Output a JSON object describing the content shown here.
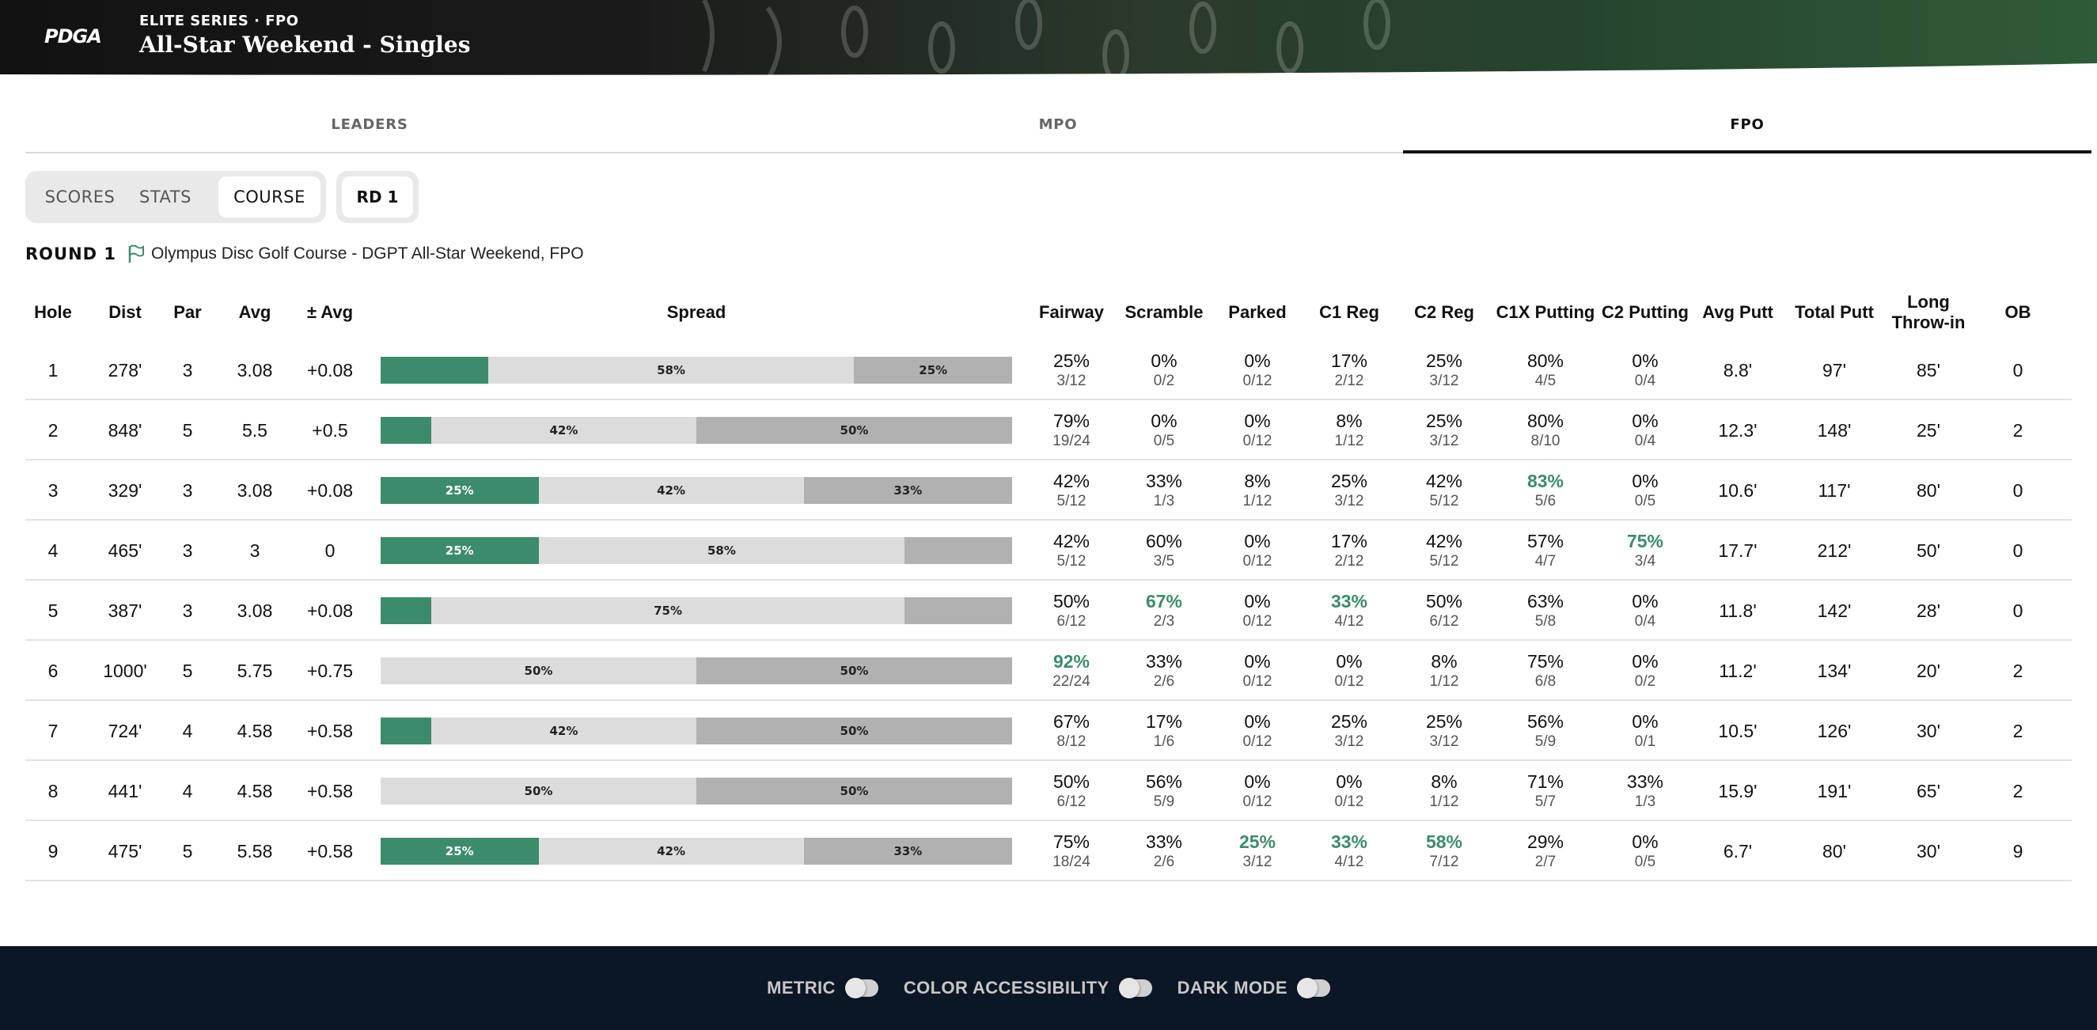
{
  "header": {
    "logo_text": "PDGA",
    "series": "ELITE SERIES · FPO",
    "event_title": "All-Star Weekend - Singles"
  },
  "division_tabs": [
    {
      "label": "LEADERS",
      "active": false
    },
    {
      "label": "MPO",
      "active": false
    },
    {
      "label": "FPO",
      "active": true
    }
  ],
  "view_tabs": [
    {
      "label": "SCORES",
      "active": false
    },
    {
      "label": "STATS",
      "active": false
    },
    {
      "label": "COURSE",
      "active": true
    }
  ],
  "round_selector": "RD 1",
  "round": {
    "label": "ROUND 1",
    "course": "Olympus Disc Golf Course - DGPT All-Star Weekend, FPO"
  },
  "colors": {
    "accent_green": "#3c8c6b",
    "spread_light": "#dcdcdc",
    "spread_dark": "#b1b1b1",
    "footer_bg": "#0c1726"
  },
  "table": {
    "columns": [
      "Hole",
      "Dist",
      "Par",
      "Avg",
      "± Avg",
      "Spread",
      "Fairway",
      "Scramble",
      "Parked",
      "C1 Reg",
      "C2 Reg",
      "C1X Putting",
      "C2 Putting",
      "Avg Putt",
      "Total Putt",
      "Long Throw-in",
      "OB"
    ],
    "rows": [
      {
        "hole": "1",
        "dist": "278'",
        "par": "3",
        "avg": "3.08",
        "pm": "+0.08",
        "spread": [
          {
            "pct": 17,
            "label": ""
          },
          {
            "pct": 58,
            "label": "58%"
          },
          {
            "pct": 25,
            "label": "25%"
          }
        ],
        "fairway": {
          "pct": "25%",
          "frac": "3/12",
          "hi": false
        },
        "scramble": {
          "pct": "0%",
          "frac": "0/2",
          "hi": false
        },
        "parked": {
          "pct": "0%",
          "frac": "0/12",
          "hi": false
        },
        "c1reg": {
          "pct": "17%",
          "frac": "2/12",
          "hi": false
        },
        "c2reg": {
          "pct": "25%",
          "frac": "3/12",
          "hi": false
        },
        "c1x": {
          "pct": "80%",
          "frac": "4/5",
          "hi": false
        },
        "c2putt": {
          "pct": "0%",
          "frac": "0/4",
          "hi": false
        },
        "avgputt": "8.8'",
        "totalputt": "97'",
        "longthrow": "85'",
        "ob": "0"
      },
      {
        "hole": "2",
        "dist": "848'",
        "par": "5",
        "avg": "5.5",
        "pm": "+0.5",
        "spread": [
          {
            "pct": 8,
            "label": ""
          },
          {
            "pct": 42,
            "label": "42%"
          },
          {
            "pct": 50,
            "label": "50%"
          }
        ],
        "fairway": {
          "pct": "79%",
          "frac": "19/24",
          "hi": false
        },
        "scramble": {
          "pct": "0%",
          "frac": "0/5",
          "hi": false
        },
        "parked": {
          "pct": "0%",
          "frac": "0/12",
          "hi": false
        },
        "c1reg": {
          "pct": "8%",
          "frac": "1/12",
          "hi": false
        },
        "c2reg": {
          "pct": "25%",
          "frac": "3/12",
          "hi": false
        },
        "c1x": {
          "pct": "80%",
          "frac": "8/10",
          "hi": false
        },
        "c2putt": {
          "pct": "0%",
          "frac": "0/4",
          "hi": false
        },
        "avgputt": "12.3'",
        "totalputt": "148'",
        "longthrow": "25'",
        "ob": "2"
      },
      {
        "hole": "3",
        "dist": "329'",
        "par": "3",
        "avg": "3.08",
        "pm": "+0.08",
        "spread": [
          {
            "pct": 25,
            "label": "25%"
          },
          {
            "pct": 42,
            "label": "42%"
          },
          {
            "pct": 33,
            "label": "33%"
          }
        ],
        "fairway": {
          "pct": "42%",
          "frac": "5/12",
          "hi": false
        },
        "scramble": {
          "pct": "33%",
          "frac": "1/3",
          "hi": false
        },
        "parked": {
          "pct": "8%",
          "frac": "1/12",
          "hi": false
        },
        "c1reg": {
          "pct": "25%",
          "frac": "3/12",
          "hi": false
        },
        "c2reg": {
          "pct": "42%",
          "frac": "5/12",
          "hi": false
        },
        "c1x": {
          "pct": "83%",
          "frac": "5/6",
          "hi": true
        },
        "c2putt": {
          "pct": "0%",
          "frac": "0/5",
          "hi": false
        },
        "avgputt": "10.6'",
        "totalputt": "117'",
        "longthrow": "80'",
        "ob": "0"
      },
      {
        "hole": "4",
        "dist": "465'",
        "par": "3",
        "avg": "3",
        "pm": "0",
        "spread": [
          {
            "pct": 25,
            "label": "25%"
          },
          {
            "pct": 58,
            "label": "58%"
          },
          {
            "pct": 17,
            "label": ""
          }
        ],
        "fairway": {
          "pct": "42%",
          "frac": "5/12",
          "hi": false
        },
        "scramble": {
          "pct": "60%",
          "frac": "3/5",
          "hi": false
        },
        "parked": {
          "pct": "0%",
          "frac": "0/12",
          "hi": false
        },
        "c1reg": {
          "pct": "17%",
          "frac": "2/12",
          "hi": false
        },
        "c2reg": {
          "pct": "42%",
          "frac": "5/12",
          "hi": false
        },
        "c1x": {
          "pct": "57%",
          "frac": "4/7",
          "hi": false
        },
        "c2putt": {
          "pct": "75%",
          "frac": "3/4",
          "hi": true
        },
        "avgputt": "17.7'",
        "totalputt": "212'",
        "longthrow": "50'",
        "ob": "0"
      },
      {
        "hole": "5",
        "dist": "387'",
        "par": "3",
        "avg": "3.08",
        "pm": "+0.08",
        "spread": [
          {
            "pct": 8,
            "label": ""
          },
          {
            "pct": 75,
            "label": "75%"
          },
          {
            "pct": 17,
            "label": ""
          }
        ],
        "fairway": {
          "pct": "50%",
          "frac": "6/12",
          "hi": false
        },
        "scramble": {
          "pct": "67%",
          "frac": "2/3",
          "hi": true
        },
        "parked": {
          "pct": "0%",
          "frac": "0/12",
          "hi": false
        },
        "c1reg": {
          "pct": "33%",
          "frac": "4/12",
          "hi": true
        },
        "c2reg": {
          "pct": "50%",
          "frac": "6/12",
          "hi": false
        },
        "c1x": {
          "pct": "63%",
          "frac": "5/8",
          "hi": false
        },
        "c2putt": {
          "pct": "0%",
          "frac": "0/4",
          "hi": false
        },
        "avgputt": "11.8'",
        "totalputt": "142'",
        "longthrow": "28'",
        "ob": "0"
      },
      {
        "hole": "6",
        "dist": "1000'",
        "par": "5",
        "avg": "5.75",
        "pm": "+0.75",
        "spread": [
          {
            "pct": 0,
            "label": ""
          },
          {
            "pct": 50,
            "label": "50%"
          },
          {
            "pct": 50,
            "label": "50%"
          }
        ],
        "fairway": {
          "pct": "92%",
          "frac": "22/24",
          "hi": true
        },
        "scramble": {
          "pct": "33%",
          "frac": "2/6",
          "hi": false
        },
        "parked": {
          "pct": "0%",
          "frac": "0/12",
          "hi": false
        },
        "c1reg": {
          "pct": "0%",
          "frac": "0/12",
          "hi": false
        },
        "c2reg": {
          "pct": "8%",
          "frac": "1/12",
          "hi": false
        },
        "c1x": {
          "pct": "75%",
          "frac": "6/8",
          "hi": false
        },
        "c2putt": {
          "pct": "0%",
          "frac": "0/2",
          "hi": false
        },
        "avgputt": "11.2'",
        "totalputt": "134'",
        "longthrow": "20'",
        "ob": "2"
      },
      {
        "hole": "7",
        "dist": "724'",
        "par": "4",
        "avg": "4.58",
        "pm": "+0.58",
        "spread": [
          {
            "pct": 8,
            "label": ""
          },
          {
            "pct": 42,
            "label": "42%"
          },
          {
            "pct": 50,
            "label": "50%"
          }
        ],
        "fairway": {
          "pct": "67%",
          "frac": "8/12",
          "hi": false
        },
        "scramble": {
          "pct": "17%",
          "frac": "1/6",
          "hi": false
        },
        "parked": {
          "pct": "0%",
          "frac": "0/12",
          "hi": false
        },
        "c1reg": {
          "pct": "25%",
          "frac": "3/12",
          "hi": false
        },
        "c2reg": {
          "pct": "25%",
          "frac": "3/12",
          "hi": false
        },
        "c1x": {
          "pct": "56%",
          "frac": "5/9",
          "hi": false
        },
        "c2putt": {
          "pct": "0%",
          "frac": "0/1",
          "hi": false
        },
        "avgputt": "10.5'",
        "totalputt": "126'",
        "longthrow": "30'",
        "ob": "2"
      },
      {
        "hole": "8",
        "dist": "441'",
        "par": "4",
        "avg": "4.58",
        "pm": "+0.58",
        "spread": [
          {
            "pct": 0,
            "label": ""
          },
          {
            "pct": 50,
            "label": "50%"
          },
          {
            "pct": 50,
            "label": "50%"
          }
        ],
        "fairway": {
          "pct": "50%",
          "frac": "6/12",
          "hi": false
        },
        "scramble": {
          "pct": "56%",
          "frac": "5/9",
          "hi": false
        },
        "parked": {
          "pct": "0%",
          "frac": "0/12",
          "hi": false
        },
        "c1reg": {
          "pct": "0%",
          "frac": "0/12",
          "hi": false
        },
        "c2reg": {
          "pct": "8%",
          "frac": "1/12",
          "hi": false
        },
        "c1x": {
          "pct": "71%",
          "frac": "5/7",
          "hi": false
        },
        "c2putt": {
          "pct": "33%",
          "frac": "1/3",
          "hi": false
        },
        "avgputt": "15.9'",
        "totalputt": "191'",
        "longthrow": "65'",
        "ob": "2"
      },
      {
        "hole": "9",
        "dist": "475'",
        "par": "5",
        "avg": "5.58",
        "pm": "+0.58",
        "spread": [
          {
            "pct": 25,
            "label": "25%"
          },
          {
            "pct": 42,
            "label": "42%"
          },
          {
            "pct": 33,
            "label": "33%"
          }
        ],
        "fairway": {
          "pct": "75%",
          "frac": "18/24",
          "hi": false
        },
        "scramble": {
          "pct": "33%",
          "frac": "2/6",
          "hi": false
        },
        "parked": {
          "pct": "25%",
          "frac": "3/12",
          "hi": true
        },
        "c1reg": {
          "pct": "33%",
          "frac": "4/12",
          "hi": true
        },
        "c2reg": {
          "pct": "58%",
          "frac": "7/12",
          "hi": true
        },
        "c1x": {
          "pct": "29%",
          "frac": "2/7",
          "hi": false
        },
        "c2putt": {
          "pct": "0%",
          "frac": "0/5",
          "hi": false
        },
        "avgputt": "6.7'",
        "totalputt": "80'",
        "longthrow": "30'",
        "ob": "9"
      }
    ]
  },
  "footer": {
    "toggles": [
      {
        "label": "METRIC",
        "on": false
      },
      {
        "label": "COLOR ACCESSIBILITY",
        "on": false
      },
      {
        "label": "DARK MODE",
        "on": false
      }
    ]
  }
}
